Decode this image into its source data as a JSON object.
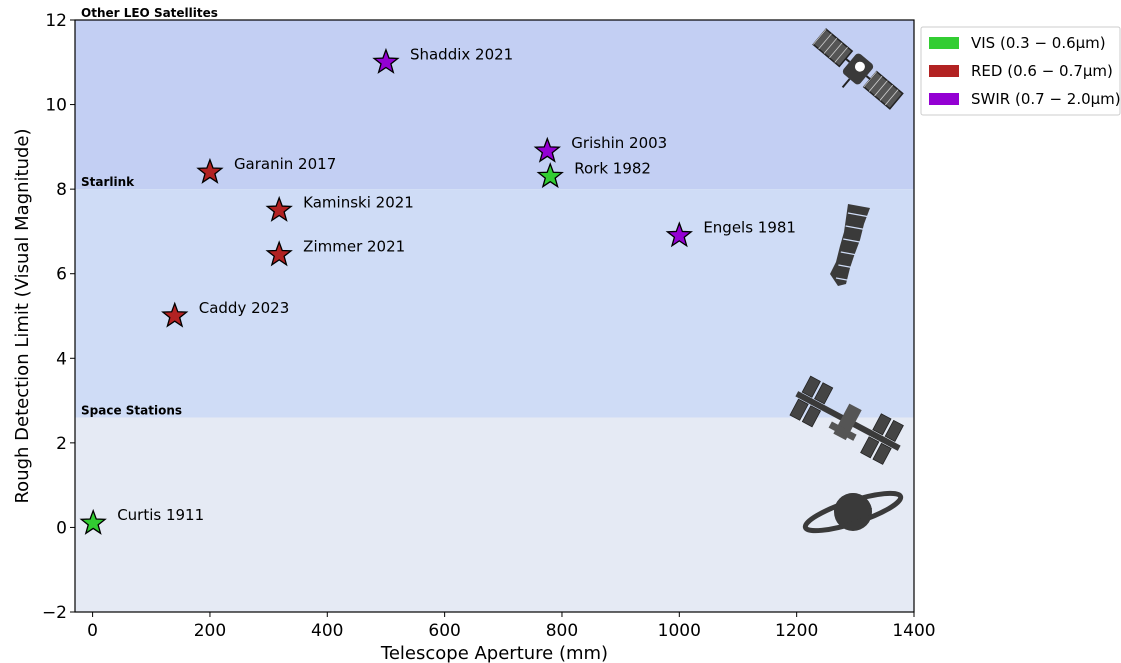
{
  "chart_data": {
    "type": "scatter",
    "xlabel": "Telescope Aperture (mm)",
    "ylabel": "Rough Detection Limit (Visual Magnitude)",
    "xlim": [
      -30,
      1400
    ],
    "ylim": [
      -2,
      12
    ],
    "xticks": [
      "0",
      "200",
      "400",
      "600",
      "800",
      "1000",
      "1200",
      "1400"
    ],
    "yticks": [
      "−2",
      "0",
      "2",
      "4",
      "6",
      "8",
      "10",
      "12"
    ],
    "bands": [
      {
        "label": "Other LEO Satellites",
        "from": 8.0,
        "to": 12,
        "color": "#c3cff3"
      },
      {
        "label": "Starlink",
        "from": 2.6,
        "to": 8.0,
        "color": "#cfdcf6"
      },
      {
        "label": "Space Stations",
        "from": -2,
        "to": 2.6,
        "color": "#e5eaf4"
      }
    ],
    "legend": {
      "placement": "outside right, top",
      "entries": [
        {
          "label": "VIS (0.3 − 0.6μm)",
          "color": "#32cd32"
        },
        {
          "label": "RED (0.6 − 0.7μm)",
          "color": "#b22222"
        },
        {
          "label": "SWIR (0.7 − 2.0μm)",
          "color": "#9400d3"
        }
      ]
    },
    "points": [
      {
        "label": "Shaddix 2021",
        "x": 500,
        "y": 11.0,
        "band": "SWIR"
      },
      {
        "label": "Grishin 2003",
        "x": 775,
        "y": 8.9,
        "band": "SWIR"
      },
      {
        "label": "Rork 1982",
        "x": 780,
        "y": 8.3,
        "band": "VIS"
      },
      {
        "label": "Garanin 2017",
        "x": 200,
        "y": 8.4,
        "band": "RED"
      },
      {
        "label": "Kaminski 2021",
        "x": 318,
        "y": 7.5,
        "band": "RED"
      },
      {
        "label": "Engels 1981",
        "x": 1000,
        "y": 6.9,
        "band": "SWIR"
      },
      {
        "label": "Zimmer 2021",
        "x": 318,
        "y": 6.45,
        "band": "RED"
      },
      {
        "label": "Caddy 2023",
        "x": 140,
        "y": 5.0,
        "band": "RED"
      },
      {
        "label": "Curtis 1911",
        "x": 1,
        "y": 0.1,
        "band": "VIS"
      }
    ],
    "icons": [
      "satellite-icon",
      "starlink-train-icon",
      "space-station-icon",
      "saturn-icon"
    ],
    "grid": false
  }
}
